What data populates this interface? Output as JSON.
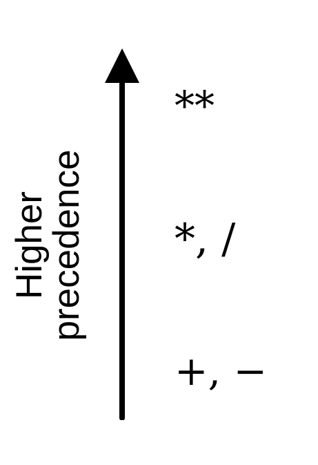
{
  "axis_label": {
    "line1": "Higher",
    "line2": "precedence"
  },
  "operators": {
    "power": "**",
    "multiply_divide": "*, /",
    "add_subtract": "+, −"
  },
  "colors": {
    "ink": "#000000",
    "background": "#ffffff"
  },
  "arrow_icon": "arrow-up-icon"
}
